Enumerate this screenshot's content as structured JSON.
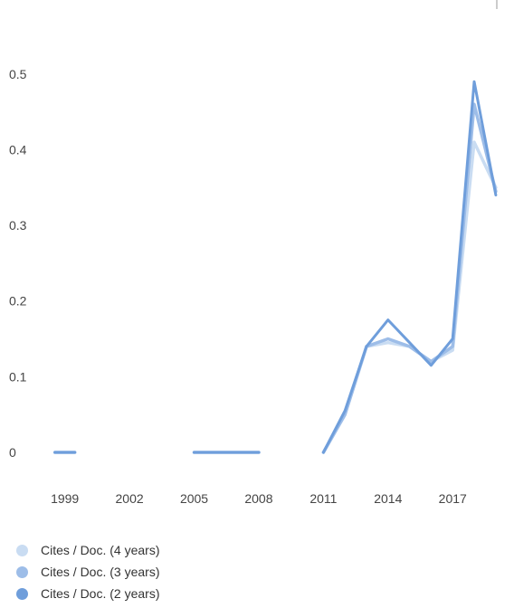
{
  "chart_data": {
    "type": "line",
    "x": [
      1999,
      2000,
      2001,
      2002,
      2003,
      2004,
      2005,
      2006,
      2007,
      2008,
      2009,
      2010,
      2011,
      2012,
      2013,
      2014,
      2015,
      2016,
      2017,
      2018,
      2019
    ],
    "x_ticks": [
      "1999",
      "2002",
      "2005",
      "2008",
      "2011",
      "2014",
      "2017"
    ],
    "y_ticks": [
      "0",
      "0.1",
      "0.2",
      "0.3",
      "0.4",
      "0.5"
    ],
    "ylim": [
      0,
      0.55
    ],
    "xlim": [
      1998.3,
      2019.3
    ],
    "grid": false,
    "legend_position": "bottom-left",
    "series": [
      {
        "name": "Cites / Doc. (4 years)",
        "color": "#c9dcf2",
        "values": [
          0,
          null,
          null,
          null,
          null,
          null,
          0,
          0,
          0,
          0,
          null,
          null,
          0,
          0.05,
          0.14,
          0.145,
          0.14,
          0.12,
          0.135,
          0.41,
          0.35
        ]
      },
      {
        "name": "Cites / Doc. (3 years)",
        "color": "#9dbde8",
        "values": [
          0,
          null,
          null,
          null,
          null,
          null,
          0,
          0,
          0,
          0,
          null,
          null,
          0,
          0.05,
          0.14,
          0.15,
          0.14,
          0.12,
          0.14,
          0.46,
          0.345
        ]
      },
      {
        "name": "Cites / Doc. (2 years)",
        "color": "#6f9edb",
        "values": [
          0,
          null,
          null,
          null,
          null,
          null,
          0,
          0,
          0,
          0,
          null,
          null,
          0,
          0.055,
          0.14,
          0.175,
          0.145,
          0.115,
          0.15,
          0.49,
          0.34
        ]
      }
    ]
  }
}
